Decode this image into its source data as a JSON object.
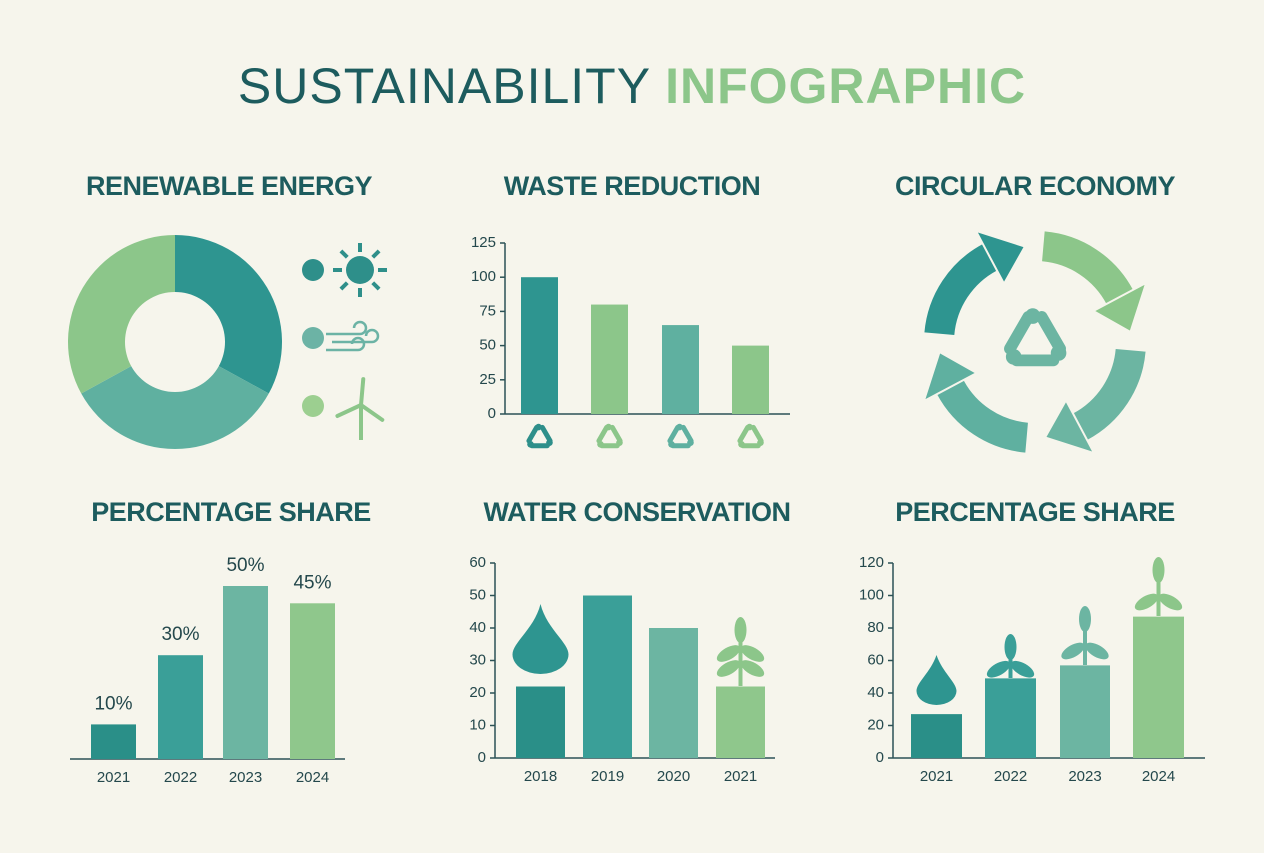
{
  "title": {
    "main": "SUSTAINABILITY",
    "accent": "INFOGRAPHIC"
  },
  "chart_data": [
    {
      "type": "donut",
      "title": "RENEWABLE ENERGY",
      "categories": [
        null,
        null,
        null
      ],
      "values": [
        33,
        34,
        33
      ],
      "colors": [
        "#2e9590",
        "#5fb0a0",
        "#8cc68a"
      ]
    },
    {
      "type": "bar",
      "title": "WASTE REDUCTION",
      "categories": [
        null,
        null,
        null,
        null
      ],
      "values": [
        100,
        80,
        65,
        50
      ],
      "colors": [
        "#2e9590",
        "#8cc68a",
        "#5fb0a0",
        "#8cc68a"
      ],
      "ylim": [
        0,
        125
      ],
      "yticks": [
        0,
        25,
        50,
        75,
        100,
        125
      ]
    },
    {
      "type": "diagram",
      "title": "CIRCULAR ECONOMY"
    },
    {
      "type": "bar",
      "title": "PERCENTAGE SHARE",
      "categories": [
        "2021",
        "2022",
        "2023",
        "2024"
      ],
      "values": [
        10,
        30,
        50,
        45
      ],
      "value_labels": [
        "10%",
        "30%",
        "50%",
        "45%"
      ],
      "colors": [
        "#2a8f88",
        "#3a9f98",
        "#6cb5a2",
        "#8fc78c"
      ]
    },
    {
      "type": "bar",
      "title": "WATER CONSERVATION",
      "categories": [
        "2018",
        "2019",
        "2020",
        "2021"
      ],
      "values": [
        22,
        50,
        40,
        22
      ],
      "colors": [
        "#2a8f88",
        "#3a9f98",
        "#6cb5a2",
        "#8fc78c"
      ],
      "ylim": [
        0,
        60
      ],
      "yticks": [
        0,
        10,
        20,
        30,
        40,
        50,
        60
      ]
    },
    {
      "type": "bar",
      "title": "PERCENTAGE SHARE",
      "categories": [
        "2021",
        "2022",
        "2023",
        "2024"
      ],
      "values": [
        27,
        49,
        57,
        87
      ],
      "colors": [
        "#2a8f88",
        "#3a9f98",
        "#6cb5a2",
        "#8fc78c"
      ],
      "ylim": [
        0,
        120
      ],
      "yticks": [
        0,
        20,
        40,
        60,
        80,
        100,
        120
      ]
    }
  ]
}
